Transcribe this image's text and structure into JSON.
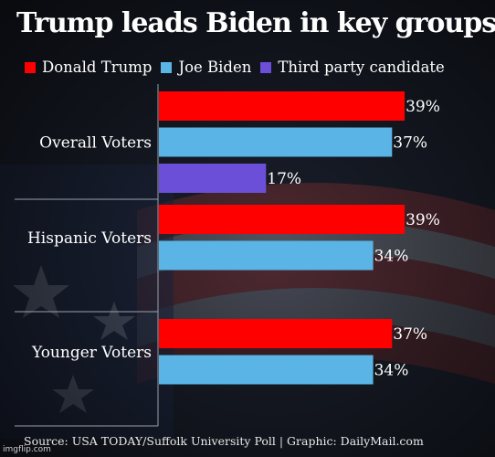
{
  "title": "Trump leads Biden in key groups",
  "source": "Source: USA TODAY/Suffolk University Poll  |  Graphic: DailyMail.com",
  "watermark": "imgflip.com",
  "colors": {
    "trump": "#ff0000",
    "biden": "#5ab4e6",
    "third": "#6c4fd9",
    "text": "#ffffff"
  },
  "chart_data": {
    "type": "bar",
    "orientation": "horizontal",
    "categories": [
      "Overall Voters",
      "Hispanic Voters",
      "Younger Voters"
    ],
    "series": [
      {
        "name": "Donald Trump",
        "values": [
          39,
          39,
          37
        ]
      },
      {
        "name": "Joe Biden",
        "values": [
          37,
          34,
          34
        ]
      },
      {
        "name": "Third party candidate",
        "values": [
          17,
          null,
          null
        ]
      }
    ],
    "value_format": "percent",
    "legend": "top",
    "grid": false
  }
}
